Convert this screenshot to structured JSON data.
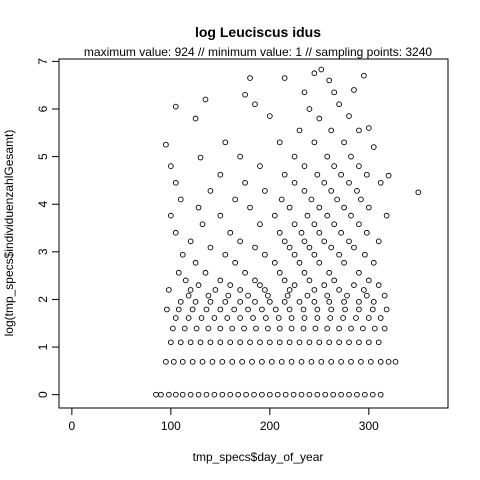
{
  "chart_data": {
    "type": "scatter",
    "title": "log Leuciscus idus",
    "subtitle": "maximum value: 924  //  minimum value: 1  // sampling points: 3240",
    "xlabel": "tmp_specs$day_of_year",
    "ylabel": "log(tmp_specs$individuenzahlGesamt)",
    "xlim": [
      -13,
      380
    ],
    "ylim": [
      -0.28,
      7.05
    ],
    "x_ticks": [
      "0",
      "100",
      "200",
      "300"
    ],
    "y_ticks": [
      "0",
      "1",
      "2",
      "3",
      "4",
      "5",
      "6",
      "7"
    ],
    "marker": "open-circle",
    "color": "#000000",
    "points": [
      [
        85,
        0
      ],
      [
        90,
        0
      ],
      [
        98,
        0
      ],
      [
        105,
        0
      ],
      [
        112,
        0
      ],
      [
        120,
        0
      ],
      [
        128,
        0
      ],
      [
        136,
        0
      ],
      [
        144,
        0
      ],
      [
        152,
        0
      ],
      [
        160,
        0
      ],
      [
        168,
        0
      ],
      [
        176,
        0
      ],
      [
        184,
        0
      ],
      [
        192,
        0
      ],
      [
        200,
        0
      ],
      [
        208,
        0
      ],
      [
        216,
        0
      ],
      [
        224,
        0
      ],
      [
        232,
        0
      ],
      [
        240,
        0
      ],
      [
        248,
        0
      ],
      [
        256,
        0
      ],
      [
        264,
        0
      ],
      [
        272,
        0
      ],
      [
        280,
        0
      ],
      [
        288,
        0
      ],
      [
        296,
        0
      ],
      [
        304,
        0
      ],
      [
        312,
        0
      ],
      [
        95,
        0.69
      ],
      [
        103,
        0.69
      ],
      [
        112,
        0.69
      ],
      [
        122,
        0.69
      ],
      [
        132,
        0.69
      ],
      [
        142,
        0.69
      ],
      [
        152,
        0.69
      ],
      [
        162,
        0.69
      ],
      [
        172,
        0.69
      ],
      [
        182,
        0.69
      ],
      [
        192,
        0.69
      ],
      [
        202,
        0.69
      ],
      [
        212,
        0.69
      ],
      [
        222,
        0.69
      ],
      [
        232,
        0.69
      ],
      [
        242,
        0.69
      ],
      [
        252,
        0.69
      ],
      [
        262,
        0.69
      ],
      [
        272,
        0.69
      ],
      [
        282,
        0.69
      ],
      [
        292,
        0.69
      ],
      [
        302,
        0.69
      ],
      [
        312,
        0.69
      ],
      [
        320,
        0.69
      ],
      [
        327,
        0.69
      ],
      [
        100,
        1.1
      ],
      [
        110,
        1.1
      ],
      [
        120,
        1.1
      ],
      [
        130,
        1.1
      ],
      [
        140,
        1.1
      ],
      [
        150,
        1.1
      ],
      [
        160,
        1.1
      ],
      [
        170,
        1.1
      ],
      [
        180,
        1.1
      ],
      [
        190,
        1.1
      ],
      [
        200,
        1.1
      ],
      [
        210,
        1.1
      ],
      [
        220,
        1.1
      ],
      [
        230,
        1.1
      ],
      [
        240,
        1.1
      ],
      [
        250,
        1.1
      ],
      [
        260,
        1.1
      ],
      [
        270,
        1.1
      ],
      [
        280,
        1.1
      ],
      [
        290,
        1.1
      ],
      [
        300,
        1.1
      ],
      [
        310,
        1.1
      ],
      [
        102,
        1.39
      ],
      [
        114,
        1.39
      ],
      [
        126,
        1.39
      ],
      [
        138,
        1.39
      ],
      [
        150,
        1.39
      ],
      [
        162,
        1.39
      ],
      [
        174,
        1.39
      ],
      [
        186,
        1.39
      ],
      [
        198,
        1.39
      ],
      [
        210,
        1.39
      ],
      [
        222,
        1.39
      ],
      [
        234,
        1.39
      ],
      [
        246,
        1.39
      ],
      [
        258,
        1.39
      ],
      [
        270,
        1.39
      ],
      [
        282,
        1.39
      ],
      [
        294,
        1.39
      ],
      [
        306,
        1.39
      ],
      [
        316,
        1.39
      ],
      [
        105,
        1.61
      ],
      [
        118,
        1.61
      ],
      [
        131,
        1.61
      ],
      [
        144,
        1.61
      ],
      [
        157,
        1.61
      ],
      [
        170,
        1.61
      ],
      [
        183,
        1.61
      ],
      [
        196,
        1.61
      ],
      [
        209,
        1.61
      ],
      [
        222,
        1.61
      ],
      [
        235,
        1.61
      ],
      [
        248,
        1.61
      ],
      [
        261,
        1.61
      ],
      [
        274,
        1.61
      ],
      [
        287,
        1.61
      ],
      [
        300,
        1.61
      ],
      [
        312,
        1.61
      ],
      [
        96,
        1.79
      ],
      [
        108,
        1.79
      ],
      [
        122,
        1.79
      ],
      [
        136,
        1.79
      ],
      [
        150,
        1.79
      ],
      [
        164,
        1.79
      ],
      [
        178,
        1.79
      ],
      [
        192,
        1.79
      ],
      [
        206,
        1.79
      ],
      [
        220,
        1.79
      ],
      [
        234,
        1.79
      ],
      [
        248,
        1.79
      ],
      [
        262,
        1.79
      ],
      [
        276,
        1.79
      ],
      [
        290,
        1.79
      ],
      [
        304,
        1.79
      ],
      [
        318,
        1.79
      ],
      [
        110,
        1.95
      ],
      [
        125,
        1.95
      ],
      [
        140,
        1.95
      ],
      [
        155,
        1.95
      ],
      [
        170,
        1.95
      ],
      [
        185,
        1.95
      ],
      [
        200,
        1.95
      ],
      [
        215,
        1.95
      ],
      [
        230,
        1.95
      ],
      [
        245,
        1.95
      ],
      [
        260,
        1.95
      ],
      [
        275,
        1.95
      ],
      [
        290,
        1.95
      ],
      [
        305,
        1.95
      ],
      [
        118,
        2.08
      ],
      [
        138,
        2.08
      ],
      [
        158,
        2.08
      ],
      [
        178,
        2.08
      ],
      [
        198,
        2.08
      ],
      [
        218,
        2.08
      ],
      [
        238,
        2.08
      ],
      [
        258,
        2.08
      ],
      [
        278,
        2.08
      ],
      [
        298,
        2.08
      ],
      [
        316,
        2.08
      ],
      [
        98,
        2.2
      ],
      [
        120,
        2.2
      ],
      [
        145,
        2.2
      ],
      [
        170,
        2.2
      ],
      [
        195,
        2.2
      ],
      [
        220,
        2.2
      ],
      [
        245,
        2.2
      ],
      [
        270,
        2.2
      ],
      [
        295,
        2.2
      ],
      [
        128,
        2.3
      ],
      [
        160,
        2.3
      ],
      [
        190,
        2.3
      ],
      [
        225,
        2.3
      ],
      [
        255,
        2.3
      ],
      [
        285,
        2.3
      ],
      [
        310,
        2.3
      ],
      [
        115,
        2.4
      ],
      [
        150,
        2.4
      ],
      [
        185,
        2.4
      ],
      [
        215,
        2.4
      ],
      [
        240,
        2.4
      ],
      [
        265,
        2.4
      ],
      [
        300,
        2.4
      ],
      [
        108,
        2.56
      ],
      [
        135,
        2.56
      ],
      [
        175,
        2.56
      ],
      [
        210,
        2.56
      ],
      [
        235,
        2.56
      ],
      [
        260,
        2.56
      ],
      [
        290,
        2.56
      ],
      [
        125,
        2.77
      ],
      [
        165,
        2.77
      ],
      [
        205,
        2.77
      ],
      [
        230,
        2.77
      ],
      [
        250,
        2.77
      ],
      [
        275,
        2.77
      ],
      [
        305,
        2.77
      ],
      [
        112,
        2.94
      ],
      [
        155,
        2.94
      ],
      [
        195,
        2.94
      ],
      [
        225,
        2.94
      ],
      [
        245,
        2.94
      ],
      [
        270,
        2.94
      ],
      [
        296,
        2.94
      ],
      [
        140,
        3.09
      ],
      [
        185,
        3.09
      ],
      [
        220,
        3.09
      ],
      [
        240,
        3.09
      ],
      [
        262,
        3.09
      ],
      [
        285,
        3.09
      ],
      [
        120,
        3.22
      ],
      [
        170,
        3.22
      ],
      [
        215,
        3.22
      ],
      [
        235,
        3.22
      ],
      [
        255,
        3.22
      ],
      [
        280,
        3.22
      ],
      [
        310,
        3.22
      ],
      [
        105,
        3.4
      ],
      [
        160,
        3.4
      ],
      [
        210,
        3.4
      ],
      [
        232,
        3.4
      ],
      [
        250,
        3.4
      ],
      [
        272,
        3.4
      ],
      [
        298,
        3.4
      ],
      [
        132,
        3.58
      ],
      [
        190,
        3.58
      ],
      [
        225,
        3.58
      ],
      [
        245,
        3.58
      ],
      [
        265,
        3.58
      ],
      [
        290,
        3.58
      ],
      [
        100,
        3.76
      ],
      [
        150,
        3.76
      ],
      [
        205,
        3.76
      ],
      [
        238,
        3.76
      ],
      [
        258,
        3.76
      ],
      [
        282,
        3.76
      ],
      [
        318,
        3.76
      ],
      [
        128,
        3.93
      ],
      [
        180,
        3.93
      ],
      [
        220,
        3.93
      ],
      [
        250,
        3.93
      ],
      [
        275,
        3.93
      ],
      [
        300,
        3.93
      ],
      [
        110,
        4.1
      ],
      [
        165,
        4.1
      ],
      [
        212,
        4.1
      ],
      [
        242,
        4.1
      ],
      [
        268,
        4.1
      ],
      [
        292,
        4.1
      ],
      [
        140,
        4.28
      ],
      [
        195,
        4.28
      ],
      [
        235,
        4.28
      ],
      [
        262,
        4.28
      ],
      [
        288,
        4.28
      ],
      [
        350,
        4.25
      ],
      [
        105,
        4.45
      ],
      [
        175,
        4.45
      ],
      [
        225,
        4.45
      ],
      [
        255,
        4.45
      ],
      [
        280,
        4.45
      ],
      [
        312,
        4.45
      ],
      [
        150,
        4.62
      ],
      [
        215,
        4.62
      ],
      [
        248,
        4.62
      ],
      [
        272,
        4.62
      ],
      [
        298,
        4.62
      ],
      [
        100,
        4.8
      ],
      [
        190,
        4.8
      ],
      [
        235,
        4.8
      ],
      [
        265,
        4.8
      ],
      [
        290,
        4.8
      ],
      [
        320,
        4.6
      ],
      [
        130,
        4.98
      ],
      [
        170,
        5.0
      ],
      [
        225,
        5.0
      ],
      [
        258,
        5.0
      ],
      [
        282,
        5.0
      ],
      [
        95,
        5.25
      ],
      [
        155,
        5.3
      ],
      [
        210,
        5.3
      ],
      [
        245,
        5.3
      ],
      [
        275,
        5.3
      ],
      [
        305,
        5.2
      ],
      [
        230,
        5.55
      ],
      [
        262,
        5.55
      ],
      [
        290,
        5.55
      ],
      [
        125,
        5.8
      ],
      [
        200,
        5.85
      ],
      [
        250,
        5.8
      ],
      [
        280,
        5.85
      ],
      [
        300,
        5.6
      ],
      [
        105,
        6.05
      ],
      [
        185,
        6.1
      ],
      [
        240,
        6.0
      ],
      [
        270,
        6.1
      ],
      [
        135,
        6.2
      ],
      [
        175,
        6.3
      ],
      [
        235,
        6.35
      ],
      [
        265,
        6.35
      ],
      [
        285,
        6.4
      ],
      [
        180,
        6.65
      ],
      [
        215,
        6.65
      ],
      [
        260,
        6.6
      ],
      [
        295,
        6.7
      ],
      [
        245,
        6.75
      ],
      [
        252,
        6.83
      ]
    ]
  }
}
